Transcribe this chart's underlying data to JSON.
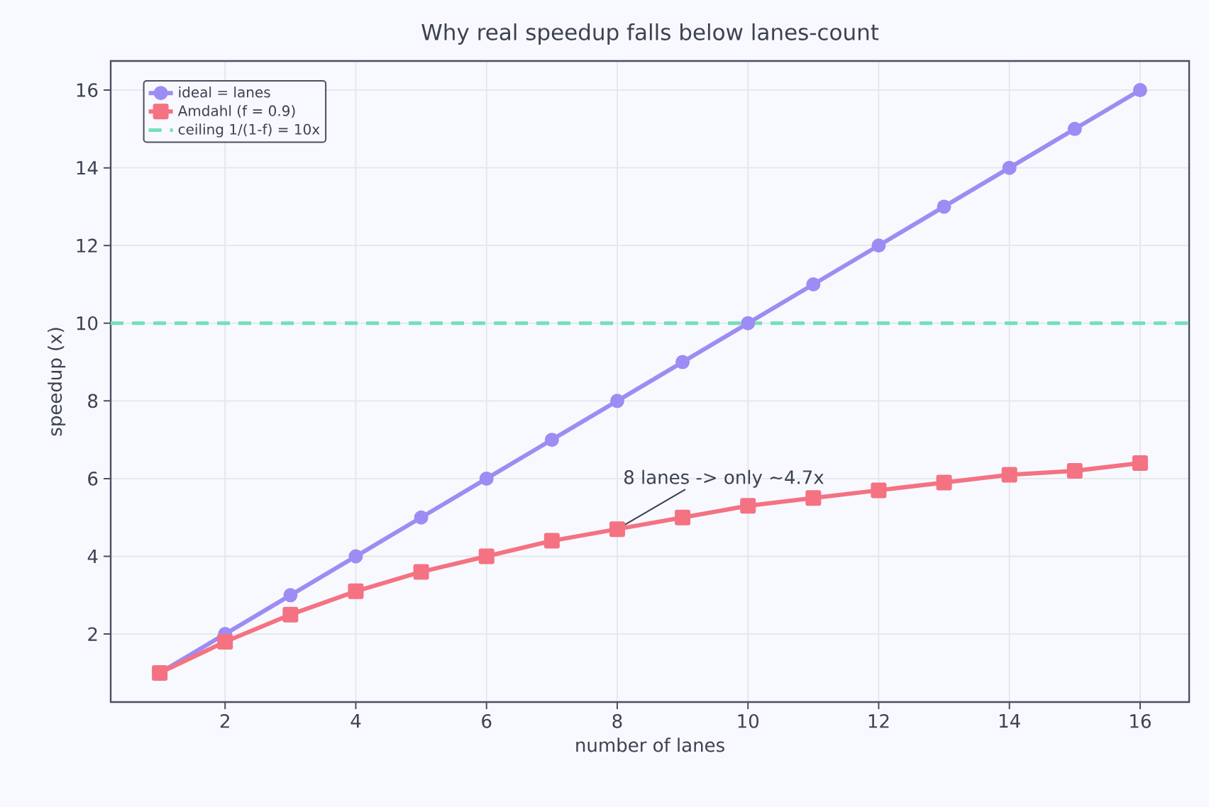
{
  "chart_data": {
    "type": "line",
    "title": "Why real speedup falls below lanes-count",
    "xlabel": "number of lanes",
    "ylabel": "speedup (x)",
    "x": [
      1,
      2,
      3,
      4,
      5,
      6,
      7,
      8,
      9,
      10,
      11,
      12,
      13,
      14,
      15,
      16
    ],
    "series": [
      {
        "name": "ideal = lanes",
        "color": "#9d8cf3",
        "marker": "circle",
        "values": [
          1,
          2,
          3,
          4,
          5,
          6,
          7,
          8,
          9,
          10,
          11,
          12,
          13,
          14,
          15,
          16
        ]
      },
      {
        "name": "Amdahl (f = 0.9)",
        "color": "#f47282",
        "marker": "square",
        "values": [
          1,
          1.8,
          2.5,
          3.1,
          3.6,
          4.0,
          4.4,
          4.7,
          5.0,
          5.3,
          5.5,
          5.7,
          5.9,
          6.1,
          6.2,
          6.4
        ]
      }
    ],
    "ref_lines": [
      {
        "axis": "y",
        "value": 10,
        "label": "ceiling 1/(1-f) = 10x",
        "color": "#72e0b9",
        "line_style": "dashed"
      }
    ],
    "annotations": [
      {
        "text": "8 lanes -> only ~4.7x",
        "x": 8,
        "y": 4.7
      }
    ],
    "xlim": [
      0.25,
      16.75
    ],
    "ylim": [
      0.25,
      16.75
    ],
    "xticks": [
      2,
      4,
      6,
      8,
      10,
      12,
      14,
      16
    ],
    "yticks": [
      2,
      4,
      6,
      8,
      10,
      12,
      14,
      16
    ],
    "grid": true,
    "legend": "top left",
    "line_style": "solid"
  }
}
